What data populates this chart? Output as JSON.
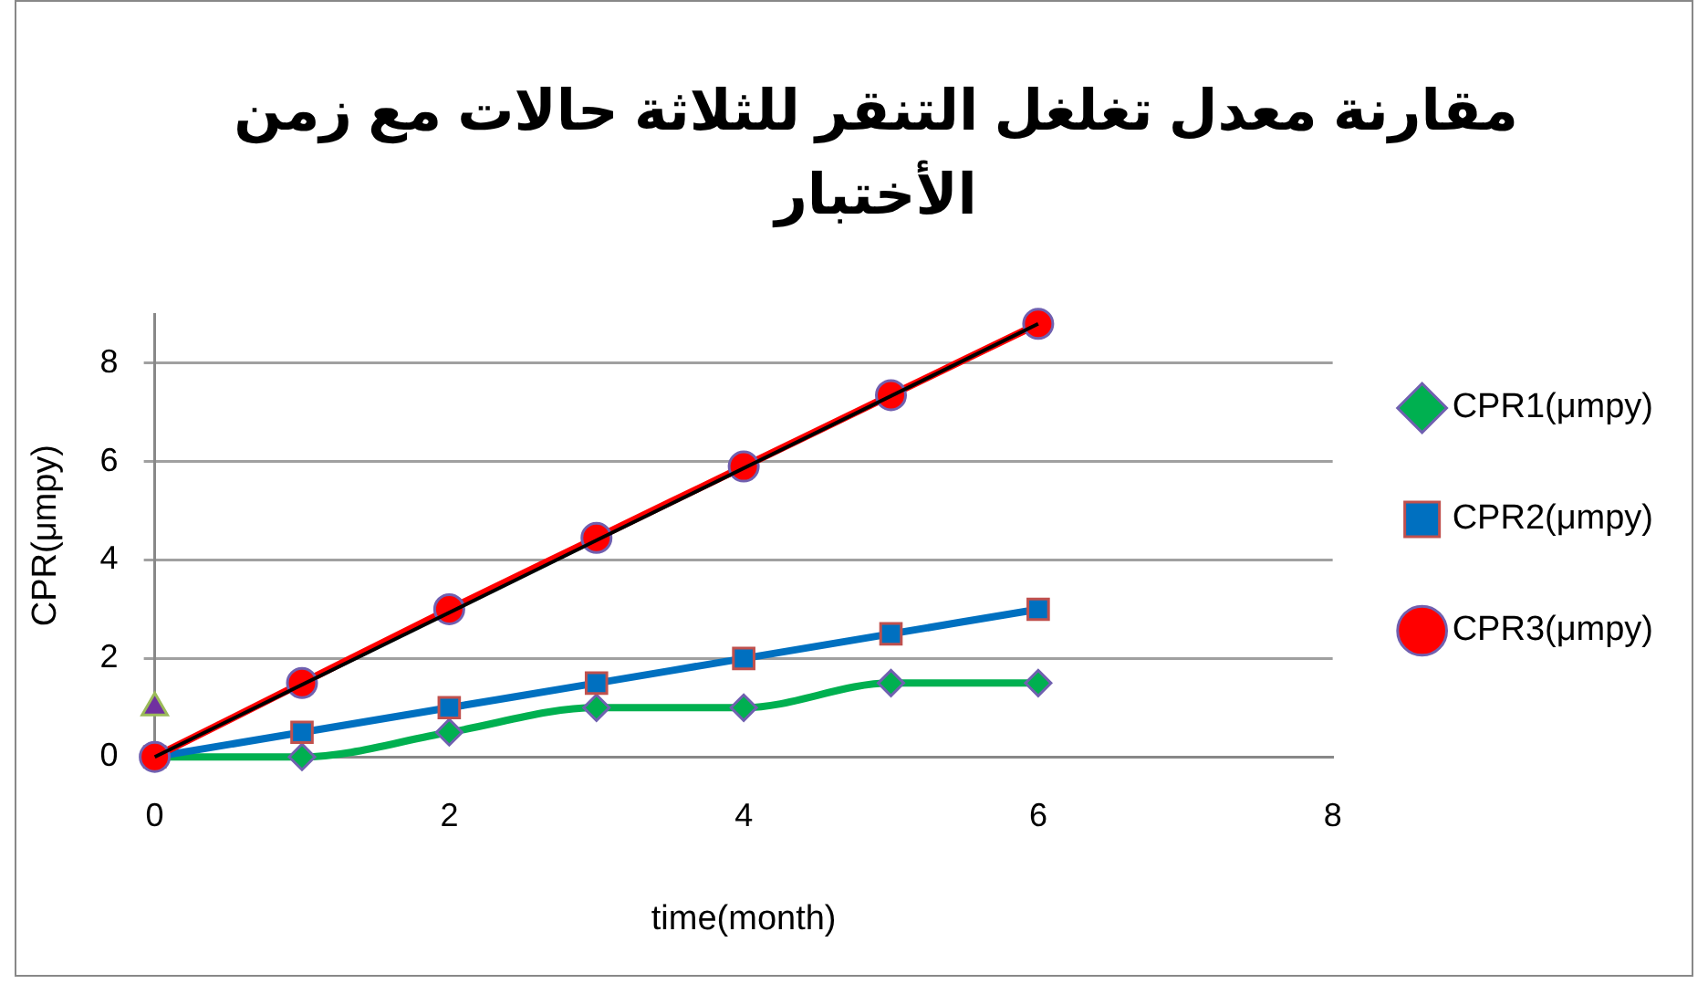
{
  "chart_data": {
    "type": "line",
    "title": "مقارنة معدل تغلغل التنقر للثلاثة حالات مع زمن الأختبار",
    "xlabel": "time(month)",
    "ylabel": "CPR(μmpy)",
    "x": [
      0,
      1,
      2,
      3,
      4,
      5,
      6
    ],
    "series": [
      {
        "name": "CPR1(μmpy)",
        "color": "#00b050",
        "marker": "diamond",
        "values": [
          0,
          0,
          0.5,
          1,
          1,
          1.5,
          1.5
        ]
      },
      {
        "name": "CPR2(μmpy)",
        "color": "#0070c0",
        "marker": "square",
        "values": [
          0,
          0.5,
          1,
          1.5,
          2,
          2.5,
          3
        ]
      },
      {
        "name": "CPR3(μmpy)",
        "color": "#ff0000",
        "marker": "circle",
        "values": [
          0,
          1.5,
          3,
          4.45,
          5.9,
          7.35,
          8.8
        ]
      },
      {
        "type": "line",
        "color": "#000000",
        "marker": "none",
        "values": [
          0,
          null,
          null,
          null,
          null,
          null,
          8.8
        ]
      },
      {
        "type": "scatter",
        "color": "#7030a0",
        "marker": "triangle",
        "values": [
          1,
          null,
          null,
          null,
          null,
          null,
          null
        ]
      }
    ],
    "xlim": [
      0,
      8
    ],
    "xticks": [
      0,
      2,
      4,
      6,
      8
    ],
    "ylim": [
      0,
      9
    ],
    "yticks": [
      0,
      2,
      4,
      6,
      8
    ],
    "grid": "y",
    "legend": "right"
  }
}
